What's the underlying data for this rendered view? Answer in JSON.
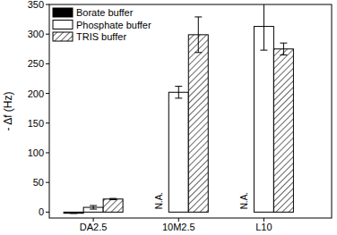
{
  "chart_data": {
    "type": "bar",
    "y_label": "- Δf (Hz)",
    "categories": [
      "DA2.5",
      "10M2.5",
      "L10"
    ],
    "series": [
      {
        "name": "Borate buffer",
        "color": "#000000",
        "values": [
          -2,
          null,
          null
        ],
        "errors": [
          0,
          null,
          null
        ]
      },
      {
        "name": "Phosphate buffer",
        "color": "#ffffff",
        "values": [
          8,
          202,
          313
        ],
        "errors": [
          3,
          10,
          40
        ]
      },
      {
        "name": "TRIS buffer",
        "color": "#000000",
        "line_style": "hatched",
        "values": [
          22,
          299,
          275
        ],
        "errors": [
          1,
          30,
          10
        ]
      }
    ],
    "annotations": [
      {
        "text": "N.A.",
        "category": 1,
        "series": 0
      },
      {
        "text": "N.A.",
        "category": 2,
        "series": 0
      }
    ],
    "ylim": [
      -10,
      350
    ],
    "yticks": [
      0,
      50,
      100,
      150,
      200,
      250,
      300,
      350
    ],
    "legend": "top-left",
    "grid": false
  }
}
